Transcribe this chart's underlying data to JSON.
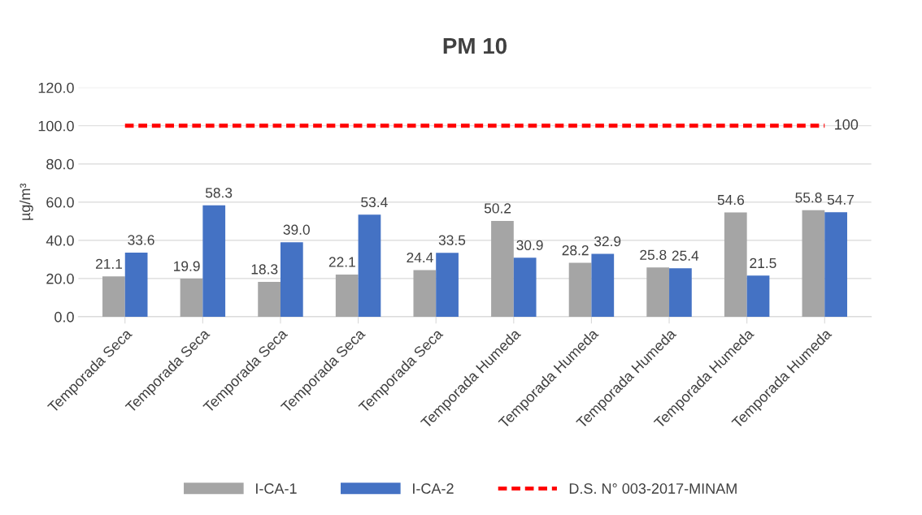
{
  "chart_data": {
    "type": "bar",
    "title": "PM 10",
    "ylabel": "µg/m³",
    "categories": [
      "Temporada Seca",
      "Temporada Seca",
      "Temporada Seca",
      "Temporada Seca",
      "Temporada Seca",
      "Temporada Humeda",
      "Temporada Humeda",
      "Temporada Humeda",
      "Temporada Humeda",
      "Temporada Humeda"
    ],
    "series": [
      {
        "name": "I-CA-1",
        "color": "#a5a5a5",
        "values": [
          21.1,
          19.9,
          18.3,
          22.1,
          24.4,
          50.2,
          28.2,
          25.8,
          54.6,
          55.8
        ],
        "value_labels": [
          "21.1",
          "19.9",
          "18.3",
          "22.1",
          "24.4",
          "50.2",
          "28.2",
          "25.8",
          "54.6",
          "55.8"
        ]
      },
      {
        "name": "I-CA-2",
        "color": "#4472c4",
        "values": [
          33.6,
          58.3,
          39.0,
          53.4,
          33.5,
          30.9,
          32.9,
          25.4,
          21.5,
          54.7
        ],
        "value_labels": [
          "33.6",
          "58.3",
          "39.0",
          "53.4",
          "33.5",
          "30.9",
          "32.9",
          "25.4",
          "21.5",
          "54.7"
        ]
      },
      {
        "name": "D.S. N° 003-2017-MINAM",
        "type": "line",
        "color": "#ff0000",
        "line_style": "dashed",
        "values": [
          100,
          100,
          100,
          100,
          100,
          100,
          100,
          100,
          100,
          100
        ],
        "value_labels": [
          null,
          null,
          null,
          null,
          null,
          null,
          null,
          null,
          null,
          "100"
        ]
      }
    ],
    "ylim": [
      0,
      120
    ],
    "yticks": [
      {
        "value": 0,
        "label": "0.0"
      },
      {
        "value": 20,
        "label": "20.0"
      },
      {
        "value": 40,
        "label": "40.0"
      },
      {
        "value": 60,
        "label": "60.0"
      },
      {
        "value": 80,
        "label": "80.0"
      },
      {
        "value": 100,
        "label": "100.0"
      },
      {
        "value": 120,
        "label": "120.0"
      }
    ],
    "grid": "y",
    "legend": "bottom"
  }
}
